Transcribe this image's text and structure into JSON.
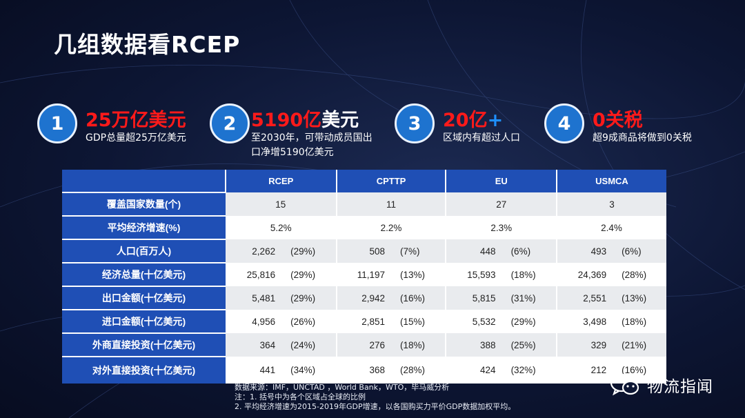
{
  "title": "几组数据看RCEP",
  "stats": [
    {
      "number": "1",
      "headline": "25万亿美元",
      "desc_lines": [
        "GDP总量超25万亿美元"
      ]
    },
    {
      "number": "2",
      "headline_red": "5190亿",
      "headline_white": "美元",
      "desc_lines": [
        "至2030年，可带动成员国出",
        "口净增5190亿美元"
      ]
    },
    {
      "number": "3",
      "headline_red": "20亿",
      "headline_plus": "+",
      "desc_lines": [
        "区域内有超过人口"
      ]
    },
    {
      "number": "4",
      "headline": "0关税",
      "desc_lines": [
        "超9成商品将做到0关税"
      ]
    }
  ],
  "table": {
    "headers": [
      "",
      "RCEP",
      "CPTTP",
      "EU",
      "USMCA"
    ],
    "rows": [
      {
        "label": "覆盖国家数量(个)",
        "single": [
          "15",
          "11",
          "27",
          "3"
        ]
      },
      {
        "label": "平均经济增速(%)",
        "single": [
          "5.2%",
          "2.2%",
          "2.3%",
          "2.4%"
        ]
      },
      {
        "label": "人口(百万人)",
        "pairs": [
          [
            "2,262",
            "(29%)"
          ],
          [
            "508",
            "(7%)"
          ],
          [
            "448",
            "(6%)"
          ],
          [
            "493",
            "(6%)"
          ]
        ]
      },
      {
        "label": "经济总量(十亿美元)",
        "pairs": [
          [
            "25,816",
            "(29%)"
          ],
          [
            "11,197",
            "(13%)"
          ],
          [
            "15,593",
            "(18%)"
          ],
          [
            "24,369",
            "(28%)"
          ]
        ]
      },
      {
        "label": "出口金额(十亿美元)",
        "pairs": [
          [
            "5,481",
            "(29%)"
          ],
          [
            "2,942",
            "(16%)"
          ],
          [
            "5,815",
            "(31%)"
          ],
          [
            "2,551",
            "(13%)"
          ]
        ]
      },
      {
        "label": "进口金额(十亿美元)",
        "pairs": [
          [
            "4,956",
            "(26%)"
          ],
          [
            "2,851",
            "(15%)"
          ],
          [
            "5,532",
            "(29%)"
          ],
          [
            "3,498",
            "(18%)"
          ]
        ]
      },
      {
        "label": "外商直接投资(十亿美元)",
        "pairs": [
          [
            "364",
            "(24%)"
          ],
          [
            "276",
            "(18%)"
          ],
          [
            "388",
            "(25%)"
          ],
          [
            "329",
            "(21%)"
          ]
        ]
      },
      {
        "label": "对外直接投资(十亿美元)",
        "pairs": [
          [
            "441",
            "(34%)"
          ],
          [
            "368",
            "(28%)"
          ],
          [
            "424",
            "(32%)"
          ],
          [
            "212",
            "(16%)"
          ]
        ]
      }
    ]
  },
  "notes": [
    "数据来源：IMF，UNCTAD ，World Bank，WTO，毕马威分析",
    "注：1. 括号中为各个区域占全球的比例",
    "2. 平均经济增速为2015-2019年GDP增速，以各国购买力平价GDP数据加权平均。"
  ],
  "brand": {
    "name": "物流指闻",
    "icon": "wechat-icon"
  },
  "colors": {
    "accent_red": "#ff1a1a",
    "accent_blue": "#1e73cf",
    "table_header": "#1f4fb5"
  }
}
